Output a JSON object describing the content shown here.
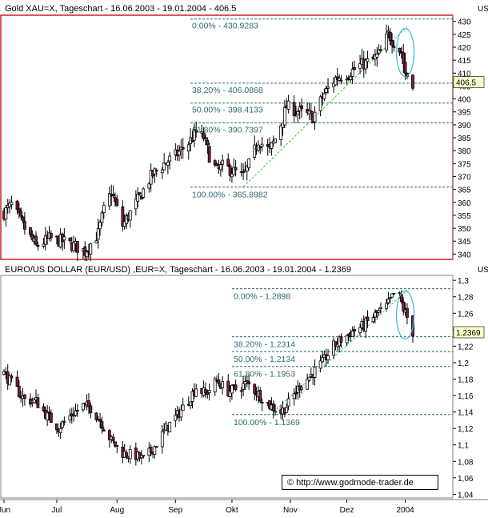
{
  "colors": {
    "up": "#ffffff",
    "down": "#7a1f4b",
    "candle_stroke": "#000000",
    "fib_line": "#2b6a72",
    "fib_text": "#2b6a72",
    "trendline": "#33cc33",
    "ellipse": "#33bbdd",
    "active_border": "#cc2222",
    "pane_border": "#808080"
  },
  "chart_data": [
    {
      "type": "candlestick",
      "title": "Gold XAU=X, Tageschart - 16.06.2003 - 19.01.2004 - 406.5",
      "axis_corner_label": "US",
      "last_price_label": "406.5",
      "last_price": 406.5,
      "ylim": [
        333,
        433
      ],
      "yticks": [
        335,
        340,
        345,
        350,
        355,
        360,
        365,
        370,
        375,
        380,
        385,
        390,
        395,
        400,
        405,
        410,
        415,
        420,
        425,
        430
      ],
      "ytick_labels": [
        "335",
        "340",
        "345",
        "350",
        "355",
        "360",
        "365",
        "370",
        "375",
        "380",
        "385",
        "390",
        "395",
        "400",
        "405",
        "410",
        "415",
        "420",
        "425",
        "430"
      ],
      "date_range": [
        "2003-06-16",
        "2004-01-19"
      ],
      "close_path": [
        [
          "2003-06-16",
          356
        ],
        [
          "2003-06-20",
          359
        ],
        [
          "2003-06-27",
          350
        ],
        [
          "2003-07-03",
          343
        ],
        [
          "2003-07-10",
          346
        ],
        [
          "2003-07-17",
          345
        ],
        [
          "2003-07-24",
          343
        ],
        [
          "2003-07-29",
          341
        ],
        [
          "2003-08-05",
          348
        ],
        [
          "2003-08-08",
          357
        ],
        [
          "2003-08-12",
          364
        ],
        [
          "2003-08-18",
          351
        ],
        [
          "2003-08-22",
          356
        ],
        [
          "2003-08-27",
          362
        ],
        [
          "2003-09-02",
          370
        ],
        [
          "2003-09-09",
          375
        ],
        [
          "2003-09-15",
          378
        ],
        [
          "2003-09-22",
          383
        ],
        [
          "2003-09-26",
          387
        ],
        [
          "2003-09-30",
          385
        ],
        [
          "2003-10-03",
          378
        ],
        [
          "2003-10-07",
          372
        ],
        [
          "2003-10-10",
          374
        ],
        [
          "2003-10-16",
          372
        ],
        [
          "2003-10-21",
          370
        ],
        [
          "2003-10-25",
          376
        ],
        [
          "2003-10-29",
          384
        ],
        [
          "2003-11-04",
          380
        ],
        [
          "2003-11-08",
          386
        ],
        [
          "2003-11-13",
          397
        ],
        [
          "2003-11-20",
          395
        ],
        [
          "2003-11-27",
          393
        ],
        [
          "2003-12-03",
          402
        ],
        [
          "2003-12-09",
          408
        ],
        [
          "2003-12-16",
          410
        ],
        [
          "2003-12-22",
          413
        ],
        [
          "2003-12-29",
          415
        ],
        [
          "2004-01-02",
          418
        ],
        [
          "2004-01-06",
          425
        ],
        [
          "2004-01-09",
          422
        ],
        [
          "2004-01-13",
          418
        ],
        [
          "2004-01-15",
          410
        ],
        [
          "2004-01-19",
          406.5
        ]
      ],
      "fib_levels": [
        {
          "label": "0.00% - 430.9283",
          "value": 430.9283
        },
        {
          "label": "38.20% - 406.0868",
          "value": 406.0868
        },
        {
          "label": "50.00% - 398.4133",
          "value": 398.4133
        },
        {
          "label": "61.80% - 390.7397",
          "value": 390.7397
        },
        {
          "label": "100.00% - 365.8982",
          "value": 365.8982
        }
      ],
      "trendline": [
        [
          "2003-10-21",
          366
        ],
        [
          "2004-01-16",
          428
        ]
      ],
      "highlight_ellipse": {
        "date": "2004-01-15",
        "value": 418
      }
    },
    {
      "type": "candlestick",
      "title": "EURO/US DOLLAR (EUR/USD) ,EUR=X, Tageschart - 16.06.2003 - 19.01.2004 - 1.2369",
      "axis_corner_label": "US",
      "last_price_label": "1.2369",
      "last_price": 1.2369,
      "ylim": [
        1.035,
        1.305
      ],
      "yticks": [
        1.04,
        1.06,
        1.08,
        1.1,
        1.12,
        1.14,
        1.16,
        1.18,
        1.2,
        1.22,
        1.24,
        1.26,
        1.28,
        1.3
      ],
      "ytick_labels": [
        "1,04",
        "1,06",
        "1,08",
        "1,1",
        "1,12",
        "1,14",
        "1,16",
        "1,18",
        "1,2",
        "1,22",
        "1,24",
        "1,26",
        "1,28",
        "1,3"
      ],
      "date_range": [
        "2003-06-16",
        "2004-01-19"
      ],
      "close_path": [
        [
          "2003-06-16",
          1.187
        ],
        [
          "2003-06-20",
          1.175
        ],
        [
          "2003-06-27",
          1.155
        ],
        [
          "2003-07-03",
          1.153
        ],
        [
          "2003-07-09",
          1.135
        ],
        [
          "2003-07-15",
          1.121
        ],
        [
          "2003-07-21",
          1.135
        ],
        [
          "2003-07-28",
          1.148
        ],
        [
          "2003-08-01",
          1.145
        ],
        [
          "2003-08-06",
          1.13
        ],
        [
          "2003-08-12",
          1.105
        ],
        [
          "2003-08-18",
          1.09
        ],
        [
          "2003-08-25",
          1.087
        ],
        [
          "2003-08-29",
          1.082
        ],
        [
          "2003-09-04",
          1.098
        ],
        [
          "2003-09-10",
          1.12
        ],
        [
          "2003-09-16",
          1.136
        ],
        [
          "2003-09-22",
          1.155
        ],
        [
          "2003-09-26",
          1.17
        ],
        [
          "2003-10-01",
          1.162
        ],
        [
          "2003-10-07",
          1.178
        ],
        [
          "2003-10-13",
          1.165
        ],
        [
          "2003-10-17",
          1.168
        ],
        [
          "2003-10-23",
          1.175
        ],
        [
          "2003-10-29",
          1.162
        ],
        [
          "2003-11-04",
          1.148
        ],
        [
          "2003-11-10",
          1.14
        ],
        [
          "2003-11-14",
          1.15
        ],
        [
          "2003-11-20",
          1.172
        ],
        [
          "2003-11-26",
          1.185
        ],
        [
          "2003-12-02",
          1.2
        ],
        [
          "2003-12-08",
          1.22
        ],
        [
          "2003-12-12",
          1.228
        ],
        [
          "2003-12-18",
          1.238
        ],
        [
          "2003-12-24",
          1.245
        ],
        [
          "2003-12-30",
          1.258
        ],
        [
          "2004-01-05",
          1.268
        ],
        [
          "2004-01-09",
          1.283
        ],
        [
          "2004-01-12",
          1.28
        ],
        [
          "2004-01-14",
          1.265
        ],
        [
          "2004-01-16",
          1.255
        ],
        [
          "2004-01-19",
          1.2369
        ]
      ],
      "fib_levels": [
        {
          "label": "0.00% - 1.2898",
          "value": 1.2898
        },
        {
          "label": "38.20% - 1.2314",
          "value": 1.2314
        },
        {
          "label": "50.00% - 1.2134",
          "value": 1.2134
        },
        {
          "label": "61.80% - 1.1953",
          "value": 1.1953
        },
        {
          "label": "100.00% - 1.1369",
          "value": 1.1369
        }
      ],
      "trendline": [
        [
          "2003-11-06",
          1.14
        ],
        [
          "2004-01-16",
          1.288
        ]
      ],
      "highlight_ellipse": {
        "date": "2004-01-15",
        "value": 1.258
      }
    }
  ],
  "x_axis": {
    "months": [
      {
        "label": "Jun",
        "date": "2003-06-16"
      },
      {
        "label": "Jul",
        "date": "2003-07-14"
      },
      {
        "label": "Aug",
        "date": "2003-08-15"
      },
      {
        "label": "Sep",
        "date": "2003-09-15"
      },
      {
        "label": "Okt",
        "date": "2003-10-15"
      },
      {
        "label": "Nov",
        "date": "2003-11-15"
      },
      {
        "label": "Dez",
        "date": "2003-12-15"
      },
      {
        "label": "2004",
        "date": "2004-01-15"
      }
    ]
  },
  "copyright": "© http://www.godmode-trader.de"
}
